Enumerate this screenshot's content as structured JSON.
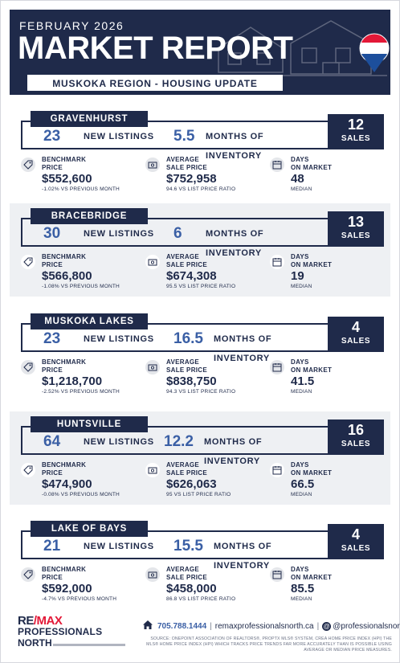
{
  "header": {
    "month": "FEBRUARY 2026",
    "title": "MARKET REPORT",
    "subtitle": "MUSKOKA REGION - HOUSING UPDATE"
  },
  "labels": {
    "new_listings": "NEW LISTINGS",
    "months_inventory": "MONTHS OF INVENTORY",
    "sales": "SALES",
    "benchmark": "BENCHMARK\nPRICE",
    "average": "AVERAGE\nSALE PRICE",
    "days": "DAYS\nON MARKET",
    "median": "MEDIAN"
  },
  "regions": [
    {
      "name": "GRAVENHURST",
      "new_listings": "23",
      "months_inventory": "5.5",
      "sales": "12",
      "benchmark_price": "$552,600",
      "benchmark_change": "-1.02% VS PREVIOUS MONTH",
      "avg_sale_price": "$752,958",
      "avg_ratio": "94.6 VS LIST PRICE RATIO",
      "days_on_market": "48"
    },
    {
      "name": "BRACEBRIDGE",
      "new_listings": "30",
      "months_inventory": "6",
      "sales": "13",
      "benchmark_price": "$566,800",
      "benchmark_change": "-1.08% VS PREVIOUS MONTH",
      "avg_sale_price": "$674,308",
      "avg_ratio": "95.5 VS LIST PRICE RATIO",
      "days_on_market": "19"
    },
    {
      "name": "MUSKOKA LAKES",
      "new_listings": "23",
      "months_inventory": "16.5",
      "sales": "4",
      "benchmark_price": "$1,218,700",
      "benchmark_change": "-2.52% VS PREVIOUS MONTH",
      "avg_sale_price": "$838,750",
      "avg_ratio": "94.3 VS LIST PRICE RATIO",
      "days_on_market": "41.5"
    },
    {
      "name": "HUNTSVILLE",
      "new_listings": "64",
      "months_inventory": "12.2",
      "sales": "16",
      "benchmark_price": "$474,900",
      "benchmark_change": "-0.08% VS PREVIOUS MONTH",
      "avg_sale_price": "$626,063",
      "avg_ratio": "95 VS LIST PRICE RATIO",
      "days_on_market": "66.5"
    },
    {
      "name": "LAKE OF BAYS",
      "new_listings": "21",
      "months_inventory": "15.5",
      "sales": "4",
      "benchmark_price": "$592,000",
      "benchmark_change": "-4.7% VS PREVIOUS MONTH",
      "avg_sale_price": "$458,000",
      "avg_ratio": "86.8 VS LIST PRICE RATIO",
      "days_on_market": "85.5"
    }
  ],
  "footer": {
    "logo_line1_a": "RE",
    "logo_line1_b": "/MAX",
    "logo_line2": "PROFESSIONALS",
    "logo_line3": "NORTH",
    "phone": "705.788.1444",
    "website": "remaxprofessionalsnorth.ca",
    "social": "@professionalsnorth",
    "source": "SOURCE: ONEPOINT ASSOCIATION OF REALTORS®, PROPTX MLS® SYSTEM, CREA HOME PRICE INDEX (HPI) THE MLS® HOME PRICE INDEX (HPI) WHICH TRACKS PRICE TRENDS FAR MORE ACCURATELY THAN IS POSSIBLE USING AVERAGE OR MEDIAN PRICE MEASURES."
  },
  "colors": {
    "navy": "#1f2a4a",
    "accent_blue": "#3a5fa5",
    "shade": "#eef0f3",
    "remax_red": "#e31837"
  },
  "icons": [
    "price-tag-icon",
    "money-icon",
    "calendar-icon",
    "home-icon",
    "at-icon",
    "balloon-logo-icon"
  ]
}
